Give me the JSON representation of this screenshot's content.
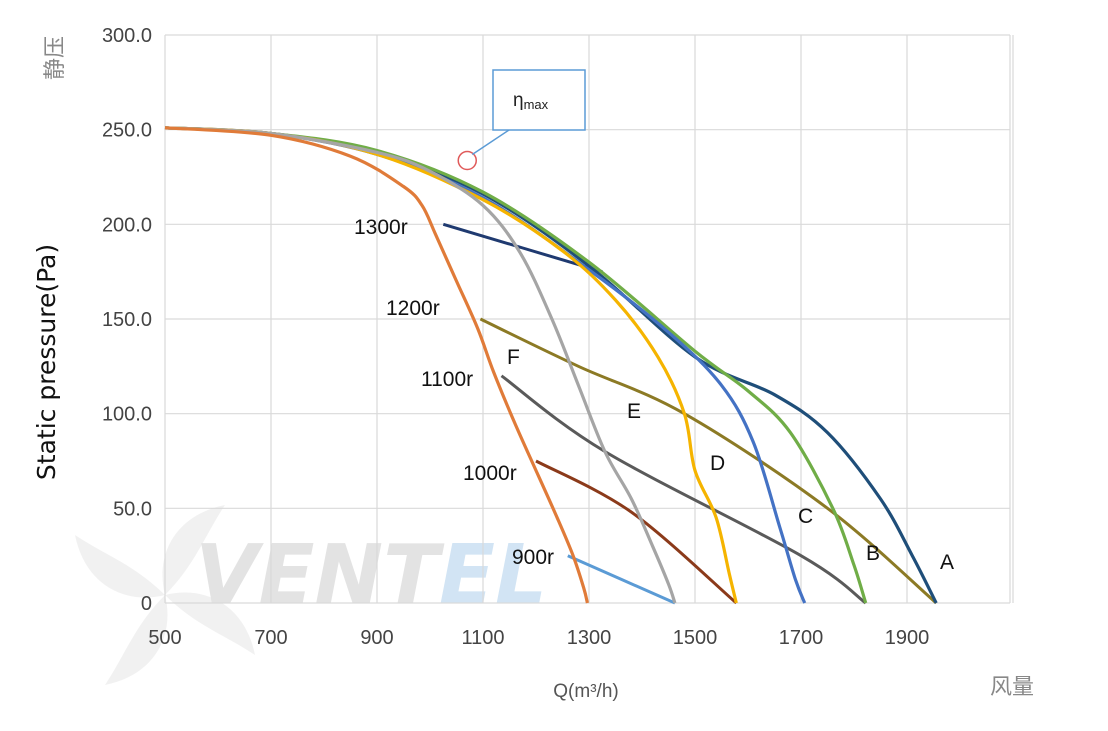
{
  "chart_data": {
    "type": "line",
    "title": "",
    "xlabel": "Q(m³/h)",
    "xlabel_cn": "风量",
    "ylabel": "Static pressure(Pa)",
    "ylabel_cn": "静压",
    "xlim": [
      500,
      1950
    ],
    "ylim": [
      0,
      300
    ],
    "x_ticks": [
      "500",
      "700",
      "900",
      "1100",
      "1300",
      "1500",
      "1700",
      "1900"
    ],
    "y_ticks": [
      "0",
      "50.0",
      "100.0",
      "150.0",
      "200.0",
      "250.0",
      "300.0"
    ],
    "grid": true,
    "watermark": {
      "main": "VENT",
      "accent": "EL"
    },
    "curves": [
      {
        "label": "A",
        "color": "#1f4e79",
        "points": [
          [
            500,
            251
          ],
          [
            700,
            248
          ],
          [
            900,
            238
          ],
          [
            1100,
            216
          ],
          [
            1300,
            178
          ],
          [
            1500,
            130
          ],
          [
            1650,
            110
          ],
          [
            1750,
            90
          ],
          [
            1850,
            55
          ],
          [
            1910,
            25
          ],
          [
            1955,
            0
          ]
        ]
      },
      {
        "label": "B",
        "color": "#70ad47",
        "points": [
          [
            500,
            251
          ],
          [
            700,
            248
          ],
          [
            900,
            239
          ],
          [
            1100,
            217
          ],
          [
            1300,
            180
          ],
          [
            1500,
            133
          ],
          [
            1600,
            112
          ],
          [
            1680,
            90
          ],
          [
            1760,
            50
          ],
          [
            1800,
            20
          ],
          [
            1822,
            0
          ]
        ]
      },
      {
        "label": "C",
        "color": "#4472c4",
        "points": [
          [
            500,
            251
          ],
          [
            700,
            248
          ],
          [
            900,
            237
          ],
          [
            1100,
            214
          ],
          [
            1300,
            176
          ],
          [
            1450,
            143
          ],
          [
            1550,
            115
          ],
          [
            1610,
            85
          ],
          [
            1660,
            40
          ],
          [
            1690,
            12
          ],
          [
            1707,
            0
          ]
        ]
      },
      {
        "label": "D",
        "color": "#f5b400",
        "points": [
          [
            500,
            251
          ],
          [
            700,
            248
          ],
          [
            900,
            237
          ],
          [
            1100,
            213
          ],
          [
            1250,
            186
          ],
          [
            1350,
            160
          ],
          [
            1430,
            130
          ],
          [
            1480,
            100
          ],
          [
            1500,
            70
          ],
          [
            1540,
            45
          ],
          [
            1565,
            15
          ],
          [
            1578,
            0
          ]
        ]
      },
      {
        "label": "E",
        "color": "#a5a5a5",
        "points": [
          [
            500,
            251
          ],
          [
            700,
            248
          ],
          [
            900,
            238
          ],
          [
            1000,
            228
          ],
          [
            1100,
            210
          ],
          [
            1170,
            185
          ],
          [
            1230,
            150
          ],
          [
            1280,
            115
          ],
          [
            1330,
            80
          ],
          [
            1380,
            55
          ],
          [
            1420,
            30
          ],
          [
            1450,
            10
          ],
          [
            1462,
            0
          ]
        ]
      },
      {
        "label": "F",
        "color": "#e07b39",
        "points": [
          [
            500,
            251
          ],
          [
            700,
            247
          ],
          [
            850,
            236
          ],
          [
            950,
            220
          ],
          [
            985,
            210
          ],
          [
            1010,
            195
          ],
          [
            1050,
            170
          ],
          [
            1090,
            145
          ],
          [
            1120,
            122
          ],
          [
            1160,
            95
          ],
          [
            1200,
            70
          ],
          [
            1240,
            45
          ],
          [
            1270,
            25
          ],
          [
            1290,
            8
          ],
          [
            1297,
            0
          ]
        ]
      }
    ],
    "speed_lines": [
      {
        "label": "1300r",
        "color": "#1f3a70",
        "points": [
          [
            1025,
            200
          ],
          [
            1325,
            175
          ]
        ]
      },
      {
        "label": "1200r",
        "color": "#8c7a25",
        "points": [
          [
            1095,
            150
          ],
          [
            1280,
            125
          ],
          [
            1480,
            100
          ],
          [
            1750,
            50
          ],
          [
            1955,
            0
          ]
        ]
      },
      {
        "label": "1100r",
        "color": "#5a5a5a",
        "points": [
          [
            1135,
            120
          ],
          [
            1330,
            80
          ],
          [
            1700,
            25
          ],
          [
            1822,
            0
          ]
        ]
      },
      {
        "label": "1000r",
        "color": "#8b3a1a",
        "points": [
          [
            1200,
            75
          ],
          [
            1380,
            48
          ],
          [
            1578,
            0
          ]
        ]
      },
      {
        "label": "900r",
        "color": "#5b9bd5",
        "points": [
          [
            1260,
            25
          ],
          [
            1462,
            0
          ]
        ]
      }
    ],
    "annotations": [
      {
        "text": "ηmax",
        "base": "η",
        "sub": "max",
        "x": 1025,
        "y": 230
      }
    ]
  }
}
